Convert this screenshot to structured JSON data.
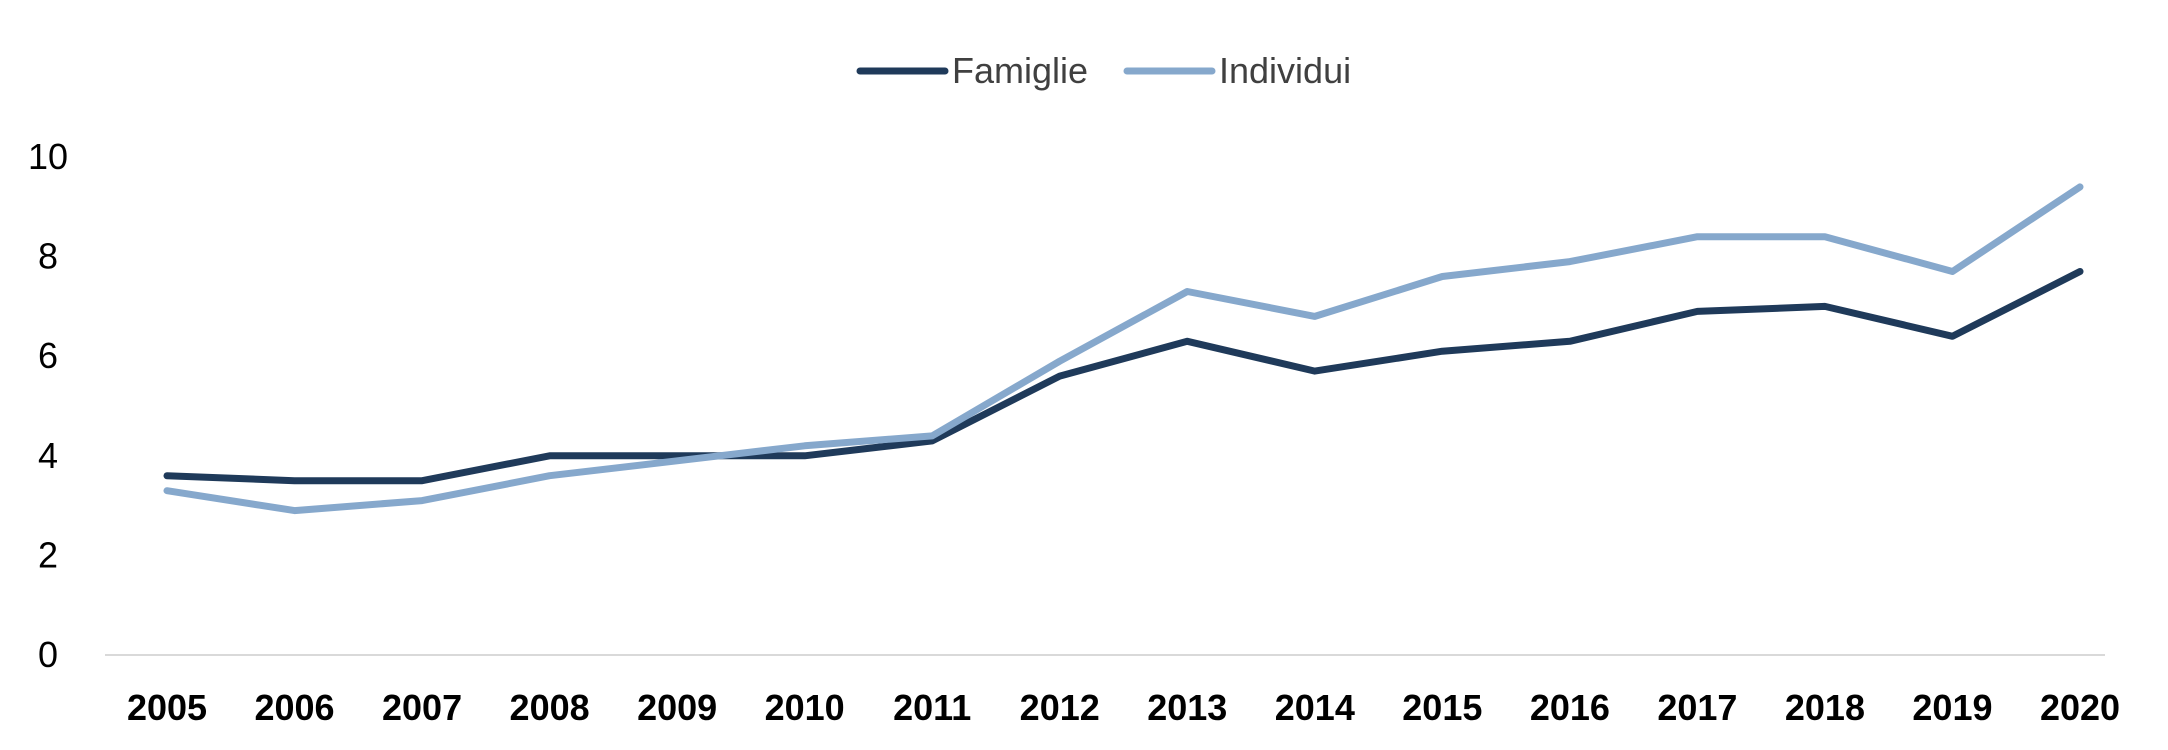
{
  "chart_data": {
    "type": "line",
    "title": "",
    "xlabel": "",
    "ylabel": "",
    "x": [
      "2005",
      "2006",
      "2007",
      "2008",
      "2009",
      "2010",
      "2011",
      "2012",
      "2013",
      "2014",
      "2015",
      "2016",
      "2017",
      "2018",
      "2019",
      "2020"
    ],
    "ylim": [
      0,
      10
    ],
    "yticks": [
      "0",
      "2",
      "4",
      "6",
      "8",
      "10"
    ],
    "grid": false,
    "legend_position": "top-center",
    "series": [
      {
        "name": "Famiglie",
        "color": "#1f3a5a",
        "values": [
          3.6,
          3.5,
          3.5,
          4.0,
          4.0,
          4.0,
          4.3,
          5.6,
          6.3,
          5.7,
          6.1,
          6.3,
          6.9,
          7.0,
          6.4,
          7.7
        ]
      },
      {
        "name": "Individui",
        "color": "#86a8cc",
        "values": [
          3.3,
          2.9,
          3.1,
          3.6,
          3.9,
          4.2,
          4.4,
          5.9,
          7.3,
          6.8,
          7.6,
          7.9,
          8.4,
          8.4,
          7.7,
          9.4
        ]
      }
    ]
  }
}
